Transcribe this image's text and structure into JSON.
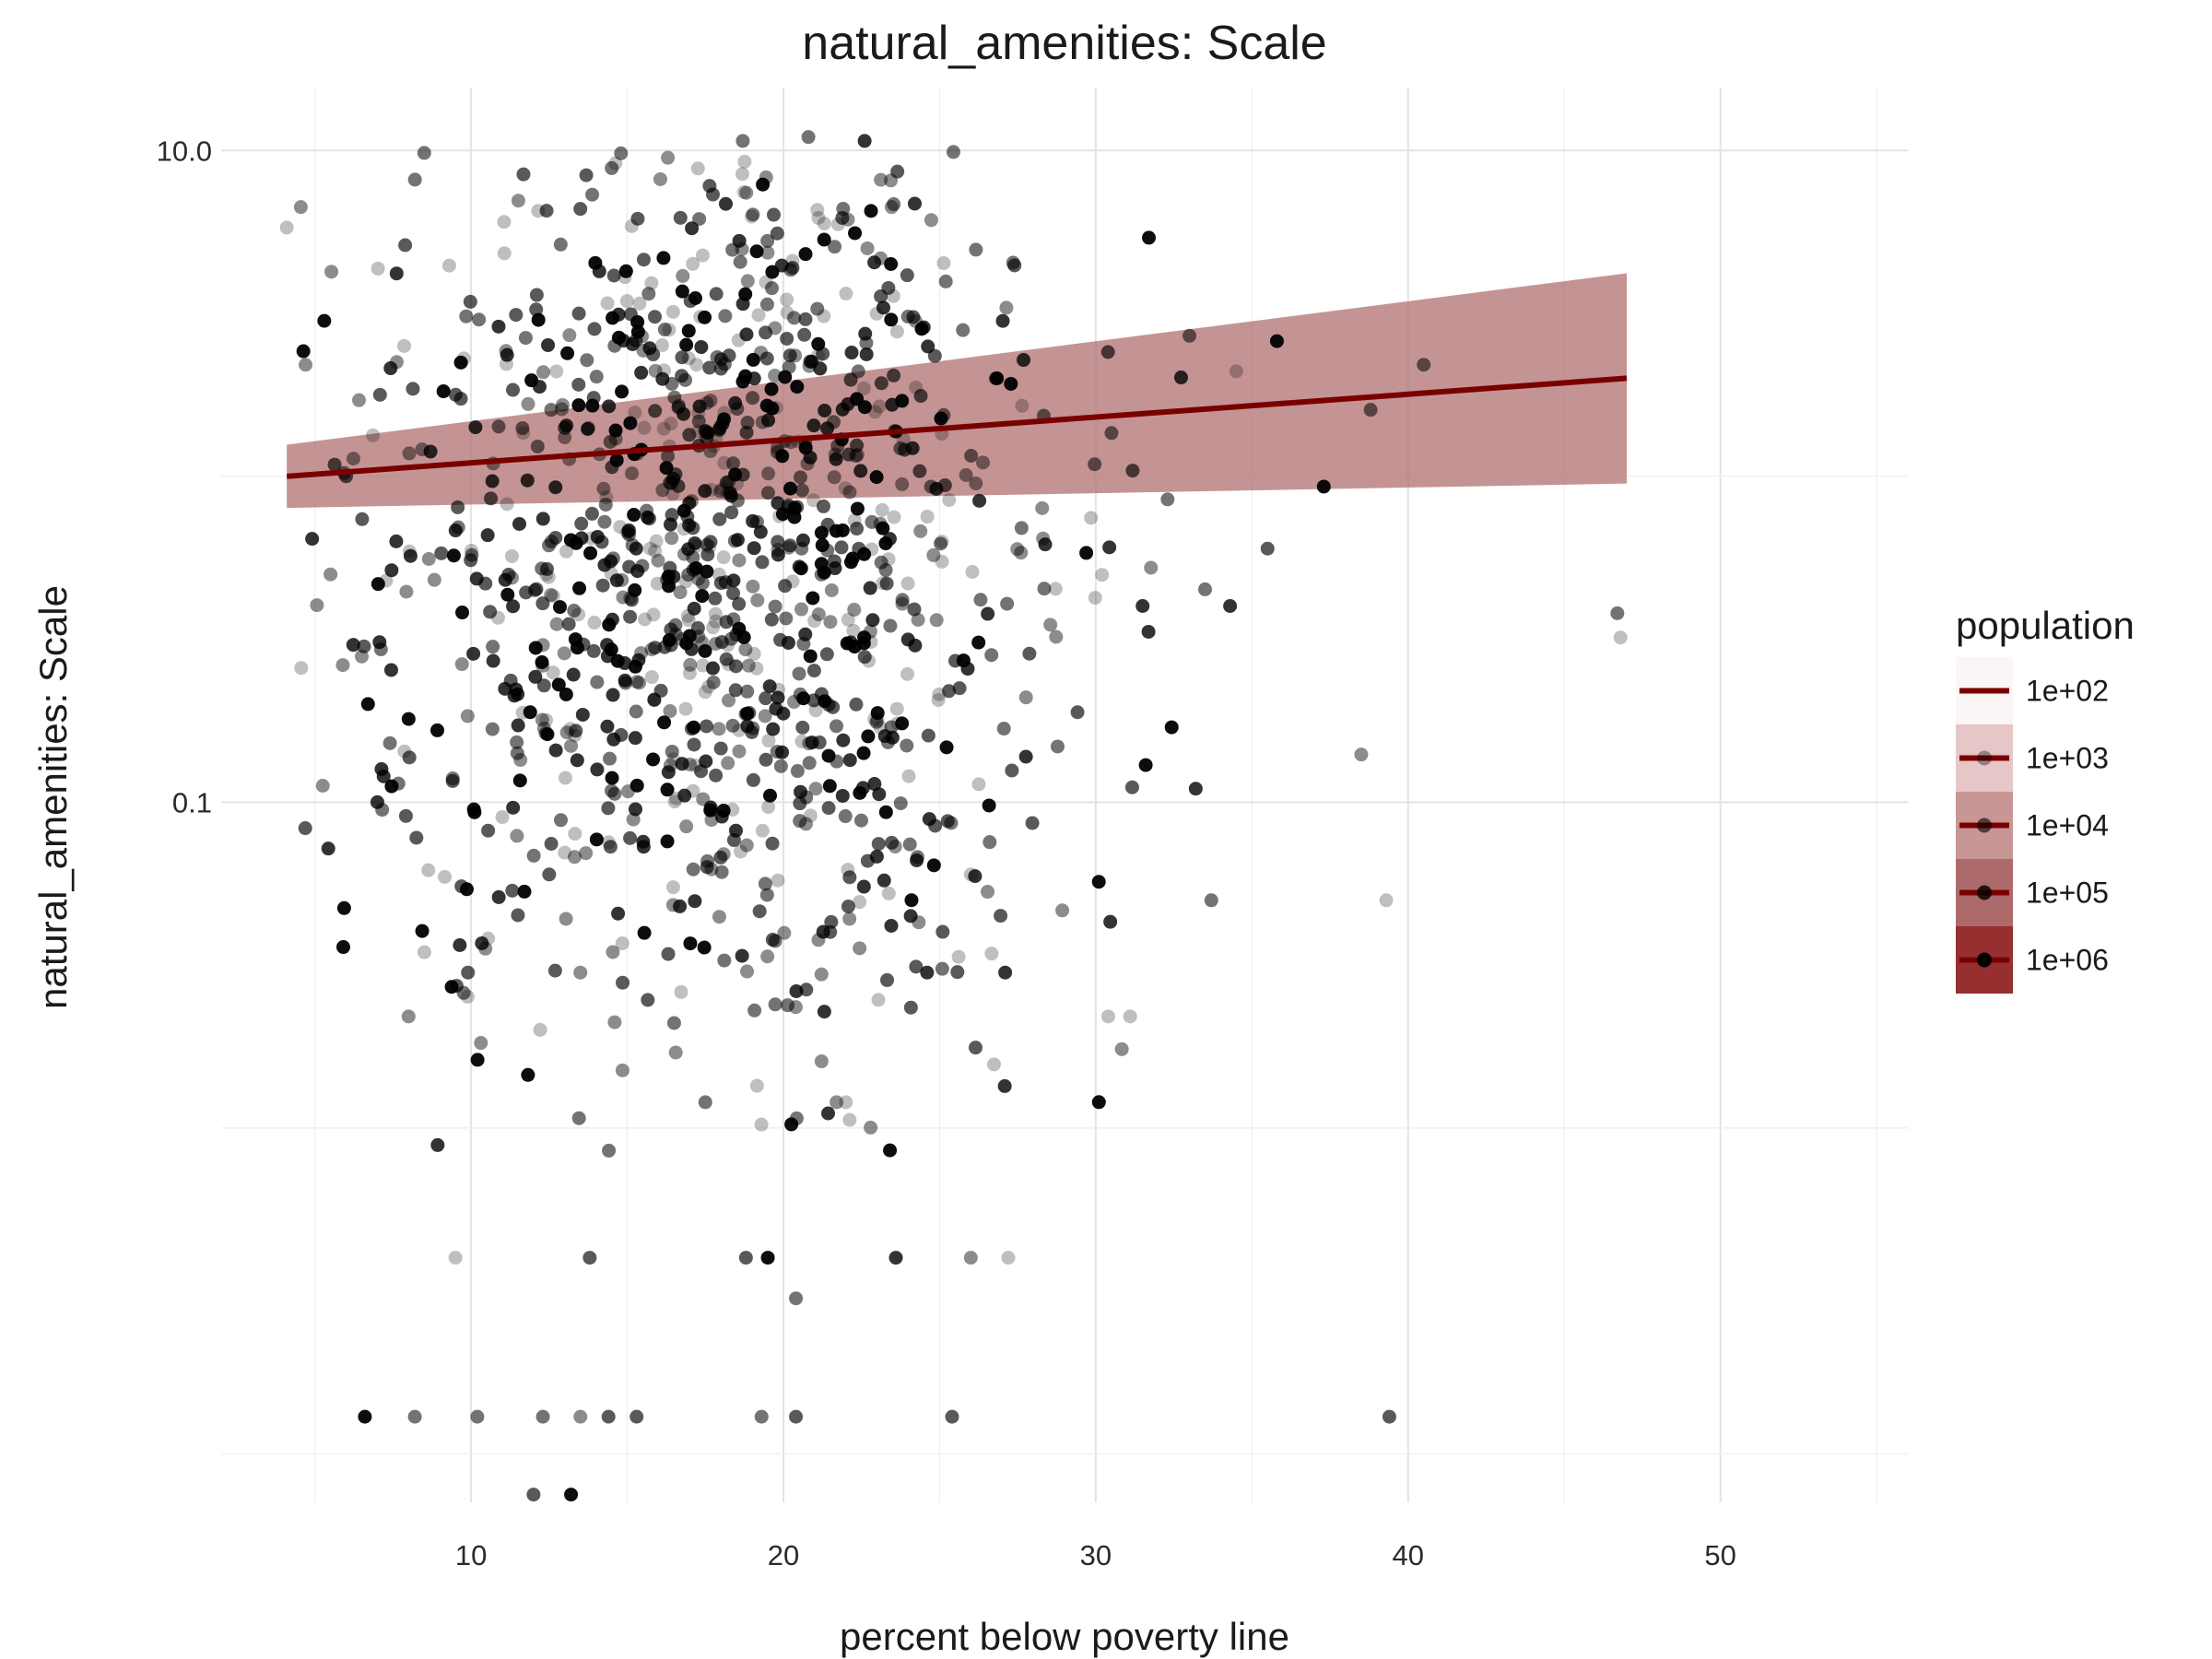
{
  "chart_data": {
    "type": "scatter",
    "title": "natural_amenities: Scale",
    "xlabel": "percent below poverty line",
    "ylabel": "natural_amenities: Scale",
    "x_scale": "linear",
    "y_scale": "log10",
    "xlim": [
      2,
      56
    ],
    "ylim": [
      0.00071,
      15.6
    ],
    "x_ticks": [
      10,
      20,
      30,
      40,
      50
    ],
    "x_tick_labels": [
      "10",
      "20",
      "30",
      "40",
      "50"
    ],
    "y_ticks": [
      10,
      0.1
    ],
    "y_tick_labels": [
      "10.0",
      "0.1"
    ],
    "grid": true,
    "legend_position": "right",
    "colors": {
      "point": "#000000",
      "trend_line": "#7a0000",
      "ribbon": "#b07070"
    },
    "legend": {
      "title": "population",
      "entries": [
        "1e+02",
        "1e+03",
        "1e+04",
        "1e+05",
        "1e+06"
      ]
    },
    "trend": {
      "x": [
        4.1,
        47.0
      ],
      "y": [
        1.0,
        2.0
      ],
      "ribbon_lower": [
        0.8,
        0.95
      ],
      "ribbon_upper": [
        1.25,
        4.2
      ]
    },
    "outliers": [
      {
        "x": 4.1,
        "y": 5.8
      },
      {
        "x": 4.7,
        "y": 2.2
      },
      {
        "x": 5.3,
        "y": 3.0
      },
      {
        "x": 5.5,
        "y": 0.5
      },
      {
        "x": 6.0,
        "y": 1.0
      },
      {
        "x": 6.5,
        "y": 0.28
      },
      {
        "x": 6.7,
        "y": 0.2
      },
      {
        "x": 7.0,
        "y": 0.1
      },
      {
        "x": 7.2,
        "y": 0.12
      },
      {
        "x": 8.0,
        "y": 0.18
      },
      {
        "x": 11.0,
        "y": 0.09
      },
      {
        "x": 12.5,
        "y": 0.06
      },
      {
        "x": 13.0,
        "y": 0.07
      },
      {
        "x": 14.8,
        "y": 9.8
      },
      {
        "x": 16.3,
        "y": 9.5
      },
      {
        "x": 18.7,
        "y": 10.7
      },
      {
        "x": 20.8,
        "y": 11.0
      },
      {
        "x": 22.6,
        "y": 10.7
      },
      {
        "x": 31.7,
        "y": 5.4
      },
      {
        "x": 33.0,
        "y": 2.7
      },
      {
        "x": 34.5,
        "y": 2.1
      },
      {
        "x": 35.8,
        "y": 2.6
      },
      {
        "x": 38.8,
        "y": 1.6
      },
      {
        "x": 40.5,
        "y": 2.2
      },
      {
        "x": 37.3,
        "y": 0.93
      },
      {
        "x": 35.5,
        "y": 0.6
      },
      {
        "x": 34.3,
        "y": 0.4
      },
      {
        "x": 33.5,
        "y": 0.45
      },
      {
        "x": 31.5,
        "y": 0.4
      },
      {
        "x": 32.3,
        "y": 0.85
      },
      {
        "x": 31.6,
        "y": 0.13
      },
      {
        "x": 38.5,
        "y": 0.14
      },
      {
        "x": 39.3,
        "y": 0.05
      },
      {
        "x": 46.7,
        "y": 0.38
      },
      {
        "x": 46.8,
        "y": 0.32
      },
      {
        "x": 33.7,
        "y": 0.05
      },
      {
        "x": 33.2,
        "y": 0.11
      },
      {
        "x": 30.4,
        "y": 0.022
      },
      {
        "x": 31.1,
        "y": 0.022
      },
      {
        "x": 26.0,
        "y": 0.06
      },
      {
        "x": 27.1,
        "y": 0.03
      },
      {
        "x": 25.1,
        "y": 0.04
      },
      {
        "x": 24.6,
        "y": 0.03
      },
      {
        "x": 23.6,
        "y": 0.004
      },
      {
        "x": 20.4,
        "y": 0.003
      },
      {
        "x": 19.5,
        "y": 0.004
      },
      {
        "x": 18.8,
        "y": 0.004
      },
      {
        "x": 17.5,
        "y": 0.012
      },
      {
        "x": 13.8,
        "y": 0.004
      },
      {
        "x": 9.5,
        "y": 0.004
      },
      {
        "x": 11.5,
        "y": 0.045
      },
      {
        "x": 13.5,
        "y": 0.03
      },
      {
        "x": 8.0,
        "y": 0.022
      },
      {
        "x": 9.9,
        "y": 0.03
      },
      {
        "x": 6.6,
        "y": 0.0013
      },
      {
        "x": 8.2,
        "y": 0.0013
      },
      {
        "x": 10.2,
        "y": 0.0013
      },
      {
        "x": 12.3,
        "y": 0.0013
      },
      {
        "x": 13.5,
        "y": 0.0013
      },
      {
        "x": 14.4,
        "y": 0.0013
      },
      {
        "x": 15.3,
        "y": 0.0013
      },
      {
        "x": 19.3,
        "y": 0.0013
      },
      {
        "x": 20.4,
        "y": 0.0013
      },
      {
        "x": 25.4,
        "y": 0.0013
      },
      {
        "x": 39.4,
        "y": 0.0013
      },
      {
        "x": 12.0,
        "y": 0.00075
      },
      {
        "x": 13.2,
        "y": 0.00075
      },
      {
        "x": 22.0,
        "y": 0.012
      },
      {
        "x": 21.7,
        "y": 0.012
      },
      {
        "x": 26.0,
        "y": 0.004
      },
      {
        "x": 27.2,
        "y": 0.004
      }
    ],
    "cluster": {
      "count": 1150,
      "x_center": 18.0,
      "x_spread": 5.2,
      "y_center": 0.6,
      "y_spread_log10": 0.75
    }
  }
}
